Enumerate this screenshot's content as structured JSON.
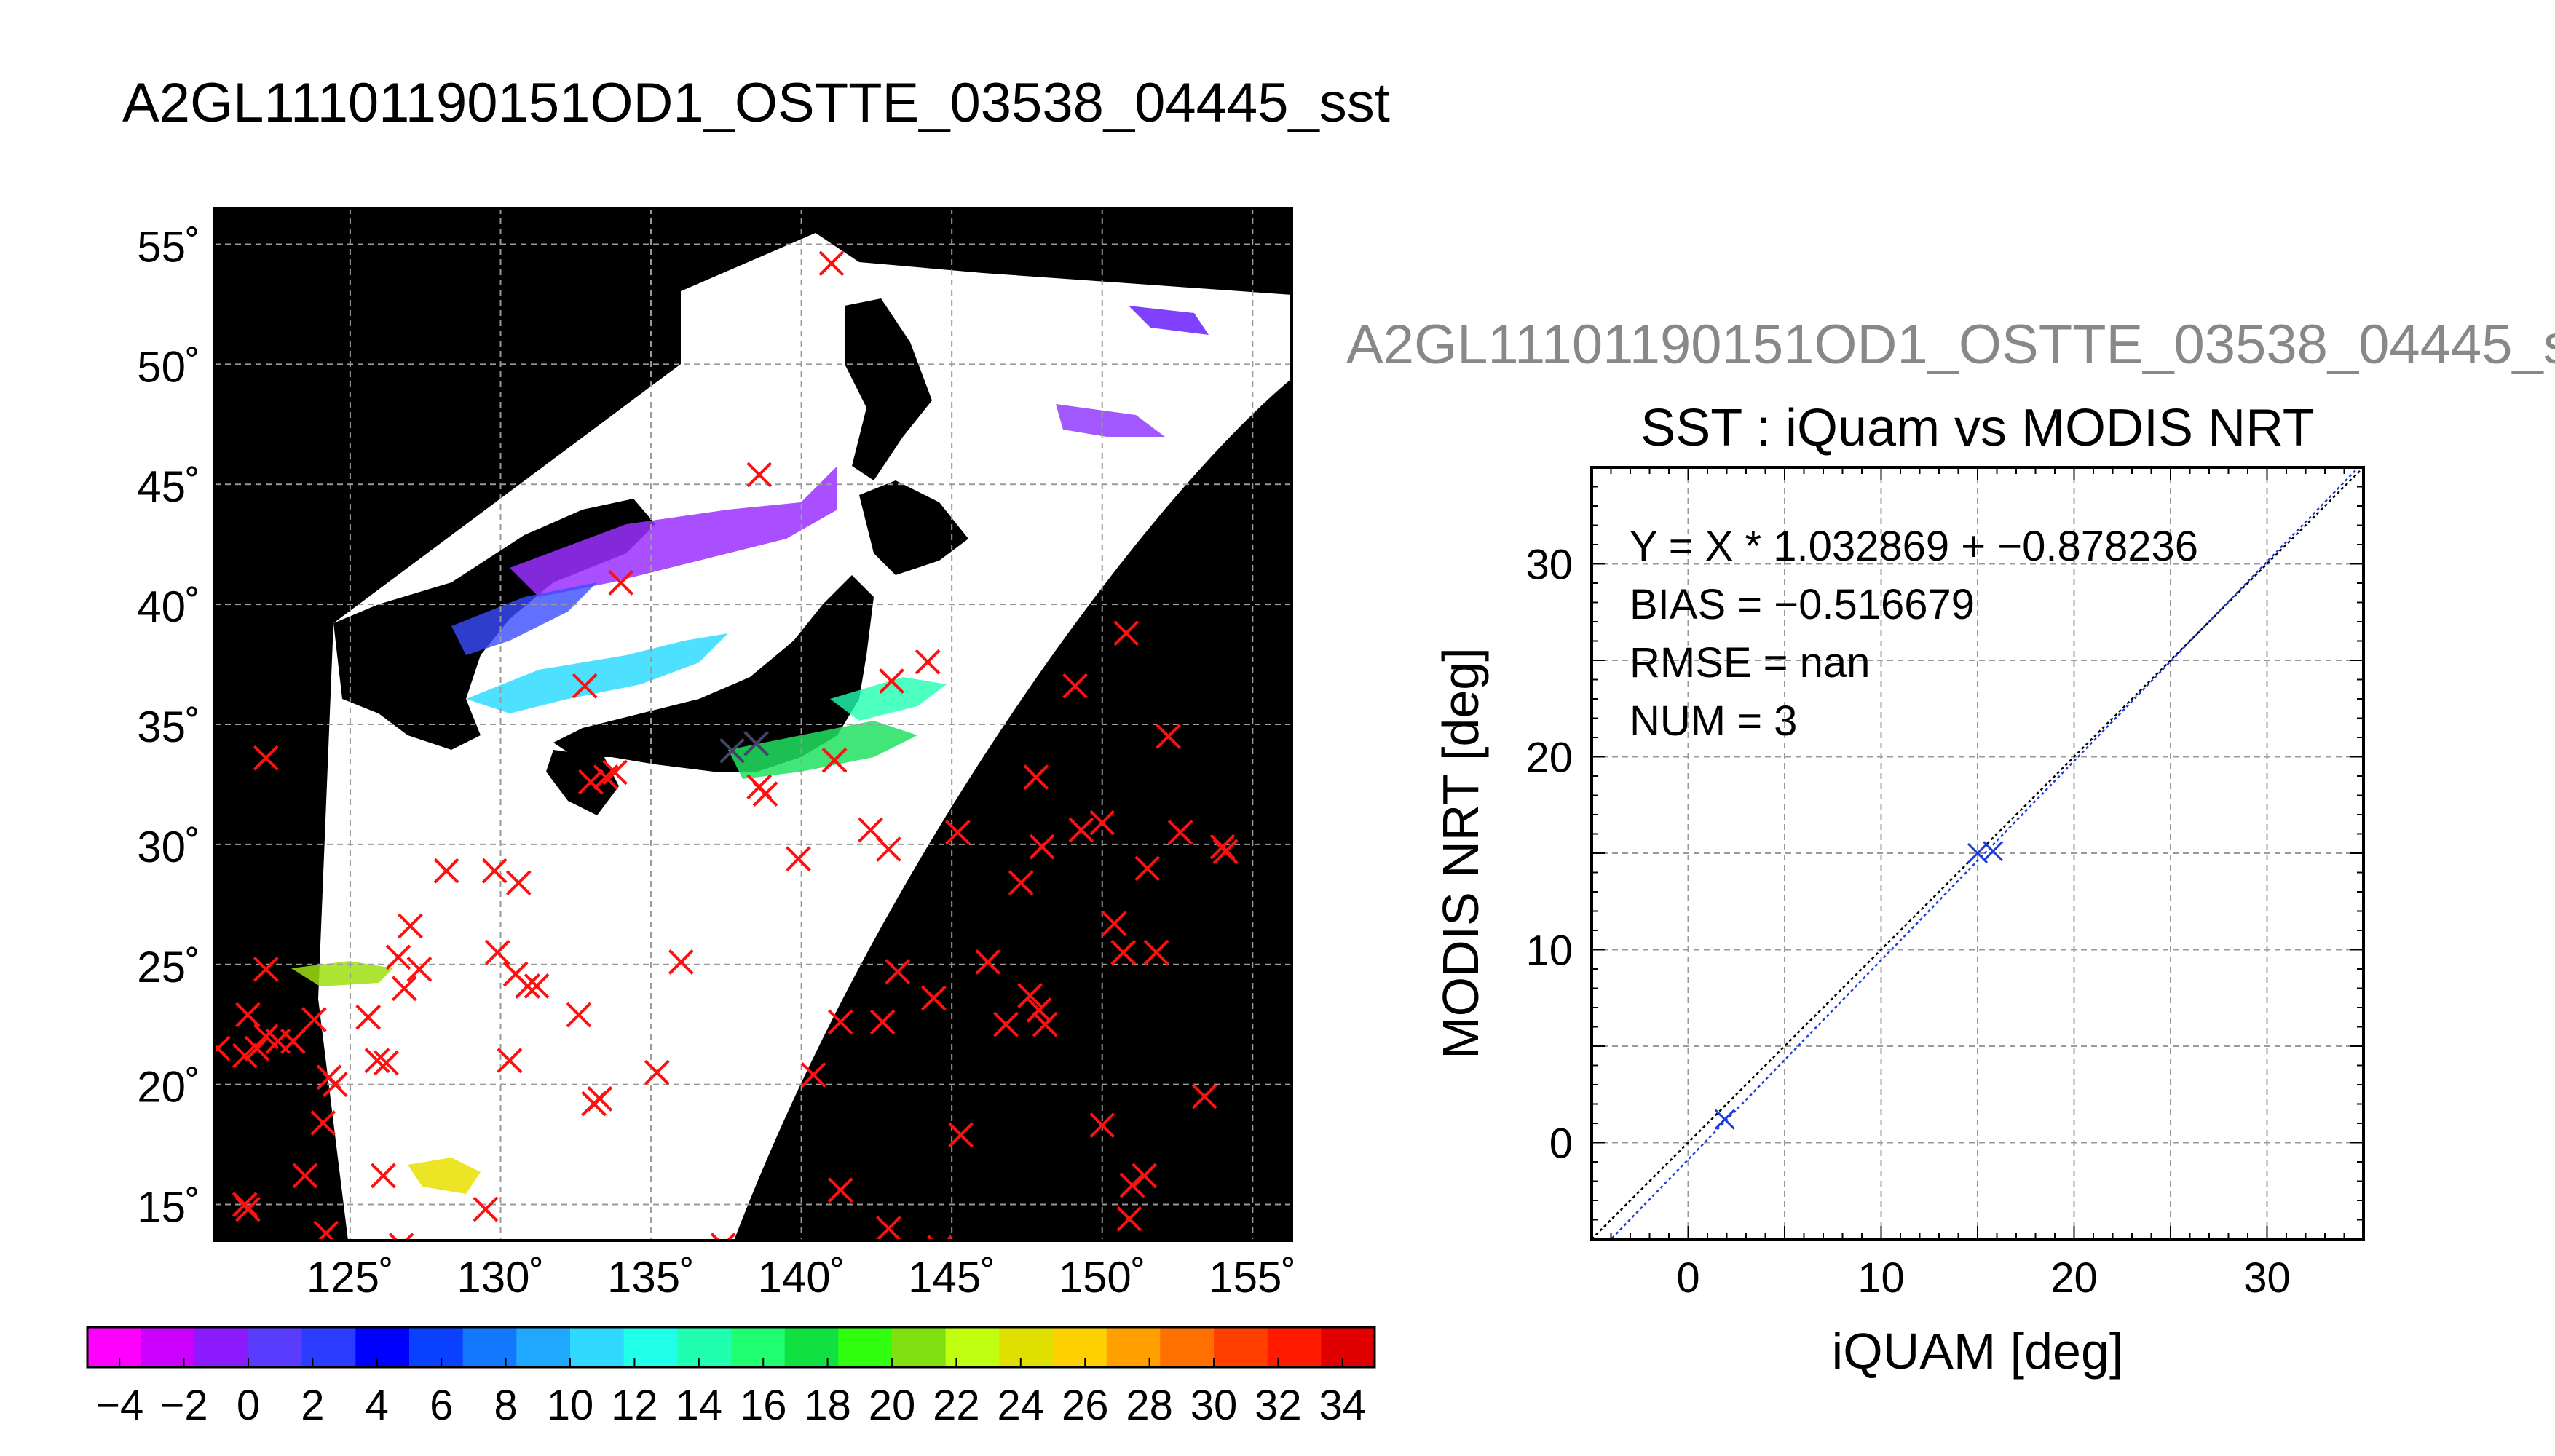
{
  "page_title": "A2GL11101190151OD1_OSTTE_03538_04445_sst",
  "scatter_filename": "A2GL11101190151OD1_OSTTE_03538_04445_s",
  "colors": {
    "map_background": "#000000",
    "grid": "#9a9a9a",
    "marker_red": "#ff1010",
    "marker_blue": "#1a3cd8",
    "fit_line": "#1a3cd8",
    "identity_line": "#000000",
    "colormap": [
      "#ff00ff",
      "#cc00ff",
      "#8c1aff",
      "#5a3cff",
      "#2a3cff",
      "#0000ff",
      "#0a40ff",
      "#1478ff",
      "#20a8ff",
      "#30d8ff",
      "#20ffe8",
      "#20ffb0",
      "#20ff70",
      "#10e040",
      "#30ff10",
      "#80e010",
      "#c0ff10",
      "#e0e000",
      "#ffd000",
      "#ffa000",
      "#ff7000",
      "#ff4000",
      "#ff1a00",
      "#e00000"
    ]
  },
  "chart_data": [
    {
      "type": "map",
      "latitude_ticks": [
        "55˚",
        "50˚",
        "45˚",
        "40˚",
        "35˚",
        "30˚",
        "25˚",
        "20˚",
        "15˚"
      ],
      "latitude_values": [
        55,
        50,
        45,
        40,
        35,
        30,
        25,
        20,
        15
      ],
      "longitude_ticks": [
        "125˚",
        "130˚",
        "135˚",
        "140˚",
        "145˚",
        "150˚",
        "155˚"
      ],
      "longitude_values": [
        125,
        130,
        135,
        140,
        145,
        150,
        155
      ],
      "lon_range": [
        120.5,
        156.3
      ],
      "lat_range": [
        13.5,
        56.5
      ],
      "grid": true,
      "colorbar": {
        "ticks": [
          "−4",
          "−2",
          "0",
          "2",
          "4",
          "6",
          "8",
          "10",
          "12",
          "14",
          "16",
          "18",
          "20",
          "22",
          "24",
          "26",
          "28",
          "30",
          "32",
          "34"
        ],
        "range": [
          -5,
          35
        ],
        "unit_values": [
          -4,
          -2,
          0,
          2,
          4,
          6,
          8,
          10,
          12,
          14,
          16,
          18,
          20,
          22,
          24,
          26,
          28,
          30,
          32,
          34
        ]
      },
      "markers_red": [
        [
          141.0,
          54.2
        ],
        [
          138.6,
          45.4
        ],
        [
          134.0,
          40.9
        ],
        [
          132.8,
          36.6
        ],
        [
          133.0,
          32.6
        ],
        [
          133.5,
          32.8
        ],
        [
          133.8,
          33.0
        ],
        [
          138.8,
          32.1
        ],
        [
          138.6,
          32.4
        ],
        [
          141.1,
          33.5
        ],
        [
          122.2,
          33.6
        ],
        [
          143.0,
          36.8
        ],
        [
          144.2,
          37.6
        ],
        [
          149.1,
          36.6
        ],
        [
          150.8,
          38.8
        ],
        [
          152.2,
          34.5
        ],
        [
          147.8,
          32.8
        ],
        [
          150.0,
          30.9
        ],
        [
          149.3,
          30.6
        ],
        [
          148.0,
          29.9
        ],
        [
          152.6,
          30.5
        ],
        [
          154.0,
          29.9
        ],
        [
          154.1,
          29.7
        ],
        [
          145.2,
          30.5
        ],
        [
          142.3,
          30.6
        ],
        [
          142.9,
          29.8
        ],
        [
          139.9,
          29.4
        ],
        [
          128.2,
          28.9
        ],
        [
          129.8,
          28.9
        ],
        [
          130.6,
          28.4
        ],
        [
          129.9,
          25.5
        ],
        [
          130.5,
          24.6
        ],
        [
          130.9,
          24.1
        ],
        [
          131.2,
          24.1
        ],
        [
          127.0,
          26.6
        ],
        [
          126.6,
          25.3
        ],
        [
          127.3,
          24.8
        ],
        [
          126.8,
          24.0
        ],
        [
          122.2,
          24.8
        ],
        [
          121.6,
          22.9
        ],
        [
          122.2,
          22.0
        ],
        [
          122.6,
          21.8
        ],
        [
          121.9,
          21.5
        ],
        [
          121.5,
          21.2
        ],
        [
          123.1,
          21.8
        ],
        [
          123.8,
          22.7
        ],
        [
          125.6,
          22.8
        ],
        [
          124.3,
          20.3
        ],
        [
          124.5,
          20.0
        ],
        [
          124.1,
          18.4
        ],
        [
          125.9,
          21.0
        ],
        [
          126.2,
          20.9
        ],
        [
          130.3,
          21.0
        ],
        [
          132.6,
          22.9
        ],
        [
          133.1,
          19.2
        ],
        [
          133.3,
          19.4
        ],
        [
          135.2,
          20.5
        ],
        [
          136.0,
          25.1
        ],
        [
          141.3,
          22.6
        ],
        [
          142.7,
          22.6
        ],
        [
          143.2,
          24.7
        ],
        [
          144.4,
          23.6
        ],
        [
          146.2,
          25.1
        ],
        [
          146.8,
          22.5
        ],
        [
          147.6,
          23.7
        ],
        [
          147.9,
          23.1
        ],
        [
          148.1,
          22.5
        ],
        [
          147.3,
          28.4
        ],
        [
          150.4,
          26.7
        ],
        [
          150.7,
          25.5
        ],
        [
          151.8,
          25.5
        ],
        [
          151.5,
          29.0
        ],
        [
          140.4,
          20.4
        ],
        [
          145.3,
          17.9
        ],
        [
          150.0,
          18.3
        ],
        [
          151.0,
          15.8
        ],
        [
          151.4,
          16.2
        ],
        [
          150.9,
          14.4
        ],
        [
          153.4,
          19.5
        ],
        [
          141.3,
          15.6
        ],
        [
          142.9,
          14.0
        ],
        [
          144.6,
          13.2
        ],
        [
          137.4,
          13.3
        ],
        [
          129.5,
          14.8
        ],
        [
          126.1,
          16.2
        ],
        [
          123.5,
          16.2
        ],
        [
          121.5,
          15.0
        ],
        [
          121.6,
          14.8
        ],
        [
          124.2,
          13.8
        ],
        [
          126.7,
          13.3
        ],
        [
          120.6,
          21.5
        ]
      ],
      "markers_dark": [
        [
          137.7,
          33.9
        ],
        [
          138.5,
          34.2
        ]
      ]
    },
    {
      "type": "scatter",
      "title": "SST : iQuam vs MODIS NRT",
      "xlabel": "iQUAM [deg]",
      "ylabel": "MODIS NRT [deg]",
      "xlim": [
        -5,
        35
      ],
      "ylim": [
        -5,
        35
      ],
      "xticks": [
        0,
        10,
        20,
        30
      ],
      "yticks": [
        0,
        10,
        20,
        30
      ],
      "grid": true,
      "annotations": [
        "Y = X * 1.032869 + −0.878236",
        "BIAS = −0.516679",
        "RMSE = nan",
        "NUM = 3"
      ],
      "fit": {
        "slope": 1.032869,
        "intercept": -0.878236
      },
      "points": [
        {
          "x": 1.9,
          "y": 1.2
        },
        {
          "x": 15.0,
          "y": 15.0
        },
        {
          "x": 15.8,
          "y": 15.1
        }
      ]
    }
  ]
}
